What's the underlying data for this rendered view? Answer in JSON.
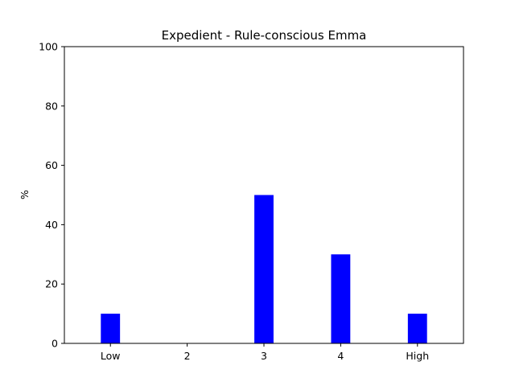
{
  "chart_data": {
    "type": "bar",
    "title": "Expedient - Rule-conscious Emma",
    "xlabel": "",
    "ylabel": "%",
    "categories": [
      "Low",
      "2",
      "3",
      "4",
      "High"
    ],
    "values": [
      10,
      0,
      50,
      30,
      10
    ],
    "ylim": [
      0,
      100
    ],
    "yticks": [
      0,
      20,
      40,
      60,
      80,
      100
    ],
    "bar_color": "#0000ff",
    "grid": false
  }
}
